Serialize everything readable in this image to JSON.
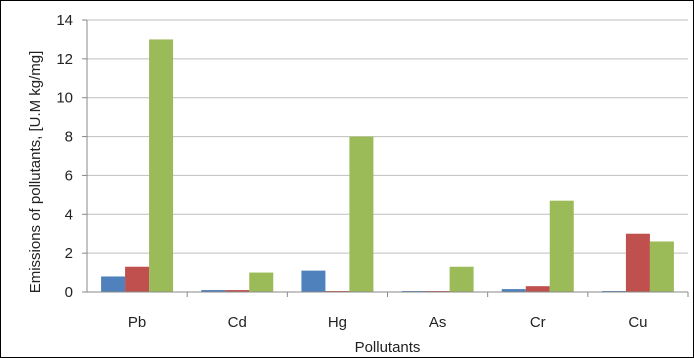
{
  "chart_data": {
    "type": "bar",
    "title": "",
    "xlabel": "Pollutants",
    "ylabel": "Emissions of pollutants, [U.M kg/mg]",
    "categories": [
      "Pb",
      "Cd",
      "Hg",
      "As",
      "Cr",
      "Cu"
    ],
    "series": [
      {
        "values": [
          0.8,
          0.1,
          1.1,
          0.05,
          0.15,
          0.05
        ],
        "color": "#4f81bd"
      },
      {
        "values": [
          1.3,
          0.1,
          0.05,
          0.05,
          0.3,
          3.0
        ],
        "color": "#c0504d"
      },
      {
        "values": [
          13.0,
          1.0,
          8.0,
          1.3,
          4.7,
          2.6
        ],
        "color": "#9bbb59"
      }
    ],
    "ylim": [
      0,
      14
    ],
    "yticks": [
      "0",
      "2",
      "4",
      "6",
      "8",
      "10",
      "12",
      "14"
    ],
    "grid": true,
    "legend": "none"
  }
}
